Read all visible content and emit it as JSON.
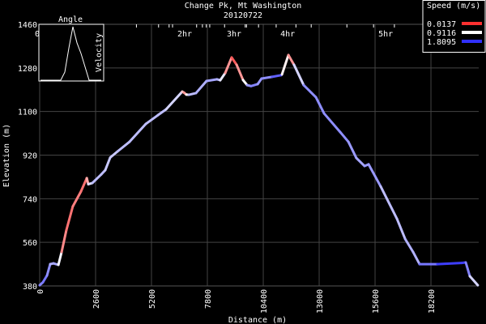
{
  "chart_data": {
    "type": "line",
    "title": "Change Pk, Mt Washington",
    "subtitle": "20120722",
    "xlabel": "Distance (m)",
    "ylabel": "Elevation (m)",
    "xlim": [
      0,
      20380
    ],
    "ylim": [
      380,
      1460
    ],
    "xticks": [
      0,
      2600,
      5200,
      7800,
      10400,
      13000,
      15600,
      18200
    ],
    "yticks": [
      380,
      560,
      740,
      920,
      1100,
      1280,
      1460
    ],
    "grid": true,
    "time_labels": [
      {
        "label": "0Hr",
        "distance": 0
      },
      {
        "label": "2hr",
        "distance": 6630
      },
      {
        "label": "3hr",
        "distance": 8930
      },
      {
        "label": "4hr",
        "distance": 11420
      },
      {
        "label": "5hr",
        "distance": 15980
      }
    ],
    "time_ticks": [
      4500,
      5530,
      6020,
      6180,
      7300,
      7570,
      7750,
      7910,
      8600,
      9560,
      9620,
      10180,
      11000,
      11920,
      12630,
      14290,
      15530,
      16500
    ],
    "legend": {
      "title": "Speed (m/s)",
      "placement": "top-right",
      "entries": [
        {
          "label": "0.0137",
          "color": "#ff3030"
        },
        {
          "label": "0.9116",
          "color": "#ffffff"
        },
        {
          "label": "1.8095",
          "color": "#3030ff"
        }
      ]
    },
    "speed_range": [
      0.0137,
      1.8095
    ],
    "series": [
      {
        "name": "Elevation",
        "distance": [
          0,
          150,
          340,
          490,
          640,
          870,
          1020,
          1240,
          1540,
          1920,
          2190,
          2260,
          2450,
          2860,
          3050,
          3280,
          3620,
          4180,
          4940,
          5500,
          5880,
          6630,
          6710,
          6820,
          6930,
          7270,
          7760,
          8250,
          8400,
          8630,
          8930,
          9160,
          9460,
          9650,
          9830,
          10140,
          10320,
          10810,
          11230,
          11270,
          11570,
          11830,
          12280,
          12850,
          13230,
          13980,
          14360,
          14730,
          15110,
          15300,
          15860,
          16620,
          17000,
          17370,
          17670,
          18500,
          19630,
          19820,
          20010,
          20380
        ],
        "elevation": [
          383,
          395,
          423,
          470,
          473,
          467,
          520,
          610,
          708,
          770,
          825,
          800,
          805,
          840,
          858,
          910,
          935,
          975,
          1049,
          1085,
          1109,
          1182,
          1178,
          1170,
          1169,
          1176,
          1226,
          1233,
          1229,
          1259,
          1323,
          1293,
          1230,
          1209,
          1205,
          1213,
          1236,
          1243,
          1250,
          1253,
          1333,
          1293,
          1209,
          1159,
          1092,
          1015,
          975,
          908,
          875,
          882,
          791,
          657,
          574,
          520,
          470,
          470,
          475,
          477,
          420,
          383
        ],
        "speed": [
          1.4,
          1.5,
          1.5,
          1.3,
          1.2,
          1.4,
          0.5,
          0.3,
          0.3,
          0.4,
          0.2,
          0.9,
          1.2,
          1.2,
          1.2,
          1.1,
          1.2,
          1.2,
          1.2,
          1.2,
          1.2,
          1.0,
          0.3,
          0.6,
          1.2,
          1.2,
          1.3,
          1.3,
          1.2,
          0.8,
          0.1,
          0.3,
          0.6,
          1.2,
          1.5,
          1.4,
          1.3,
          1.5,
          1.7,
          1.6,
          0.1,
          0.8,
          1.4,
          1.4,
          1.4,
          1.4,
          1.4,
          1.3,
          1.3,
          1.4,
          1.3,
          1.1,
          1.3,
          1.2,
          1.3,
          1.7,
          1.8,
          1.7,
          1.2,
          1.0
        ]
      }
    ],
    "inset": {
      "title": "Angle",
      "ylabel": "Velocity",
      "values": [
        0,
        0,
        0,
        0,
        0,
        0,
        0.15,
        0.6,
        1.0,
        0.7,
        0.5,
        0.25,
        0,
        0,
        0,
        0
      ]
    }
  }
}
